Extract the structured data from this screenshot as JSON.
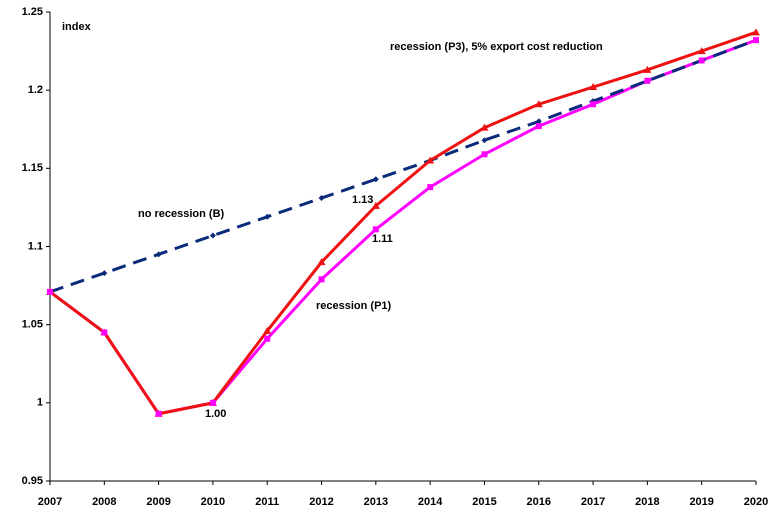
{
  "chart_data": {
    "type": "line",
    "y_label": "index",
    "categories": [
      "2007",
      "2008",
      "2009",
      "2010",
      "2011",
      "2012",
      "2013",
      "2014",
      "2015",
      "2016",
      "2017",
      "2018",
      "2019",
      "2020"
    ],
    "ylim": [
      0.95,
      1.25
    ],
    "yticks": [
      0.95,
      1,
      1.05,
      1.1,
      1.15,
      1.2,
      1.25
    ],
    "grid": false,
    "series": [
      {
        "name": "no recession (B)",
        "color": "#0a2a7a",
        "dash": true,
        "marker": "diamond",
        "values": [
          1.071,
          1.083,
          1.095,
          1.107,
          1.119,
          1.131,
          1.143,
          1.155,
          1.168,
          1.18,
          1.193,
          1.206,
          1.219,
          1.232
        ]
      },
      {
        "name": "recession (P1)",
        "color": "#ff00ff",
        "dash": false,
        "marker": "square",
        "values": [
          1.071,
          1.045,
          0.993,
          1.0,
          1.041,
          1.079,
          1.111,
          1.138,
          1.159,
          1.177,
          1.191,
          1.206,
          1.219,
          1.232
        ]
      },
      {
        "name": "recession (P3), 5% export cost reduction",
        "color": "#ee1111",
        "dash": false,
        "marker": "triangle",
        "values": [
          1.071,
          1.045,
          0.993,
          1.0,
          1.046,
          1.09,
          1.126,
          1.155,
          1.176,
          1.191,
          1.202,
          1.213,
          1.225,
          1.237
        ]
      }
    ],
    "annotations": [
      "1.13",
      "1.11",
      "1.00"
    ]
  }
}
